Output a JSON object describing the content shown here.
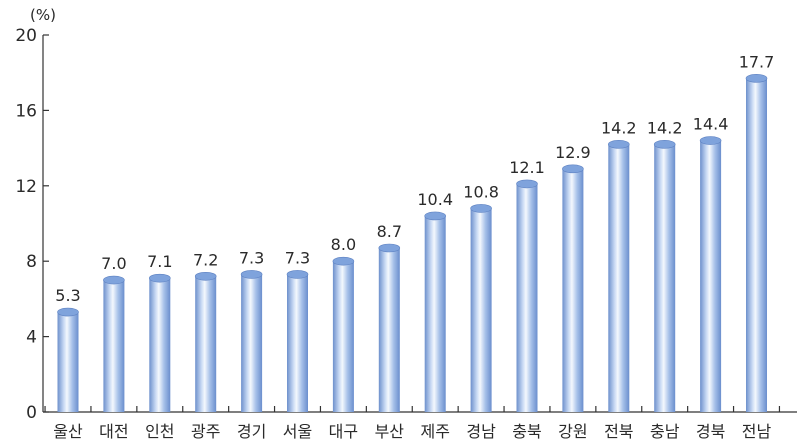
{
  "chart_data": {
    "type": "bar",
    "unit": "(%)",
    "categories": [
      "울산",
      "대전",
      "인천",
      "광주",
      "경기",
      "서울",
      "대구",
      "부산",
      "제주",
      "경남",
      "충북",
      "강원",
      "전북",
      "충남",
      "경북",
      "전남"
    ],
    "values": [
      5.3,
      7.0,
      7.1,
      7.2,
      7.3,
      7.3,
      8.0,
      8.7,
      10.4,
      10.8,
      12.1,
      12.9,
      14.2,
      14.2,
      14.4,
      17.7
    ],
    "value_labels": [
      "5.3",
      "7.0",
      "7.1",
      "7.2",
      "7.3",
      "7.3",
      "8.0",
      "8.7",
      "10.4",
      "10.8",
      "12.1",
      "12.9",
      "14.2",
      "14.2",
      "14.4",
      "17.7"
    ],
    "yticks": [
      "0",
      "4",
      "8",
      "12",
      "16",
      "20"
    ],
    "ylim": [
      0,
      20
    ],
    "grid": false,
    "bar_colors": {
      "light": "#eef3fb",
      "mid": "#a9c3ea",
      "dark": "#6b8fcf",
      "top": "#7fa3dc"
    }
  }
}
